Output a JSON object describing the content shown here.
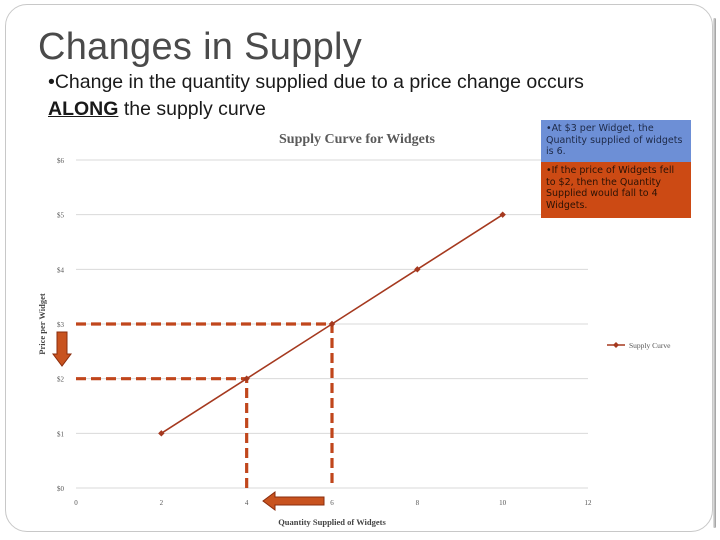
{
  "slide": {
    "title": "Changes in Supply",
    "bullet_prefix": "•Change in the quantity supplied due to a price change occurs ",
    "bullet_emphasis": "ALONG",
    "bullet_suffix": " the supply curve"
  },
  "notes": {
    "blue": "•At $3 per Widget, the Quantity supplied of widgets is 6.",
    "orange": "•If the price of Widgets fell to $2, then the Quantity Supplied would fall to 4 Widgets."
  },
  "colors": {
    "series": "#a5391f",
    "guide": "#c0461c",
    "arrow": "#c8531f",
    "grid": "#d9d9d9",
    "note_blue": "#6d8fd6",
    "note_orange": "#cc4a14"
  },
  "chart_data": {
    "type": "line",
    "title": "Supply Curve for Widgets",
    "xlabel": "Quantity Supplied of Widgets",
    "ylabel": "Price per Widget",
    "xlim": [
      0,
      12
    ],
    "ylim": [
      0,
      6
    ],
    "x_ticks": [
      "0",
      "2",
      "4",
      "6",
      "8",
      "10",
      "12"
    ],
    "y_ticks": [
      "$0",
      "$1",
      "$2",
      "$3",
      "$4",
      "$5",
      "$6"
    ],
    "grid": "horizontal",
    "legend_position": "right",
    "series": [
      {
        "name": "Supply Curve",
        "x": [
          2,
          4,
          6,
          8,
          10
        ],
        "y": [
          1,
          2,
          3,
          4,
          5
        ]
      }
    ],
    "annotations": [
      {
        "type": "dashed-guide",
        "x": 6,
        "y": 3
      },
      {
        "type": "dashed-guide",
        "x": 4,
        "y": 2
      },
      {
        "type": "arrow",
        "direction": "down",
        "axis": "y",
        "at": 3
      },
      {
        "type": "arrow",
        "direction": "left",
        "axis": "x",
        "at": 6
      }
    ]
  }
}
